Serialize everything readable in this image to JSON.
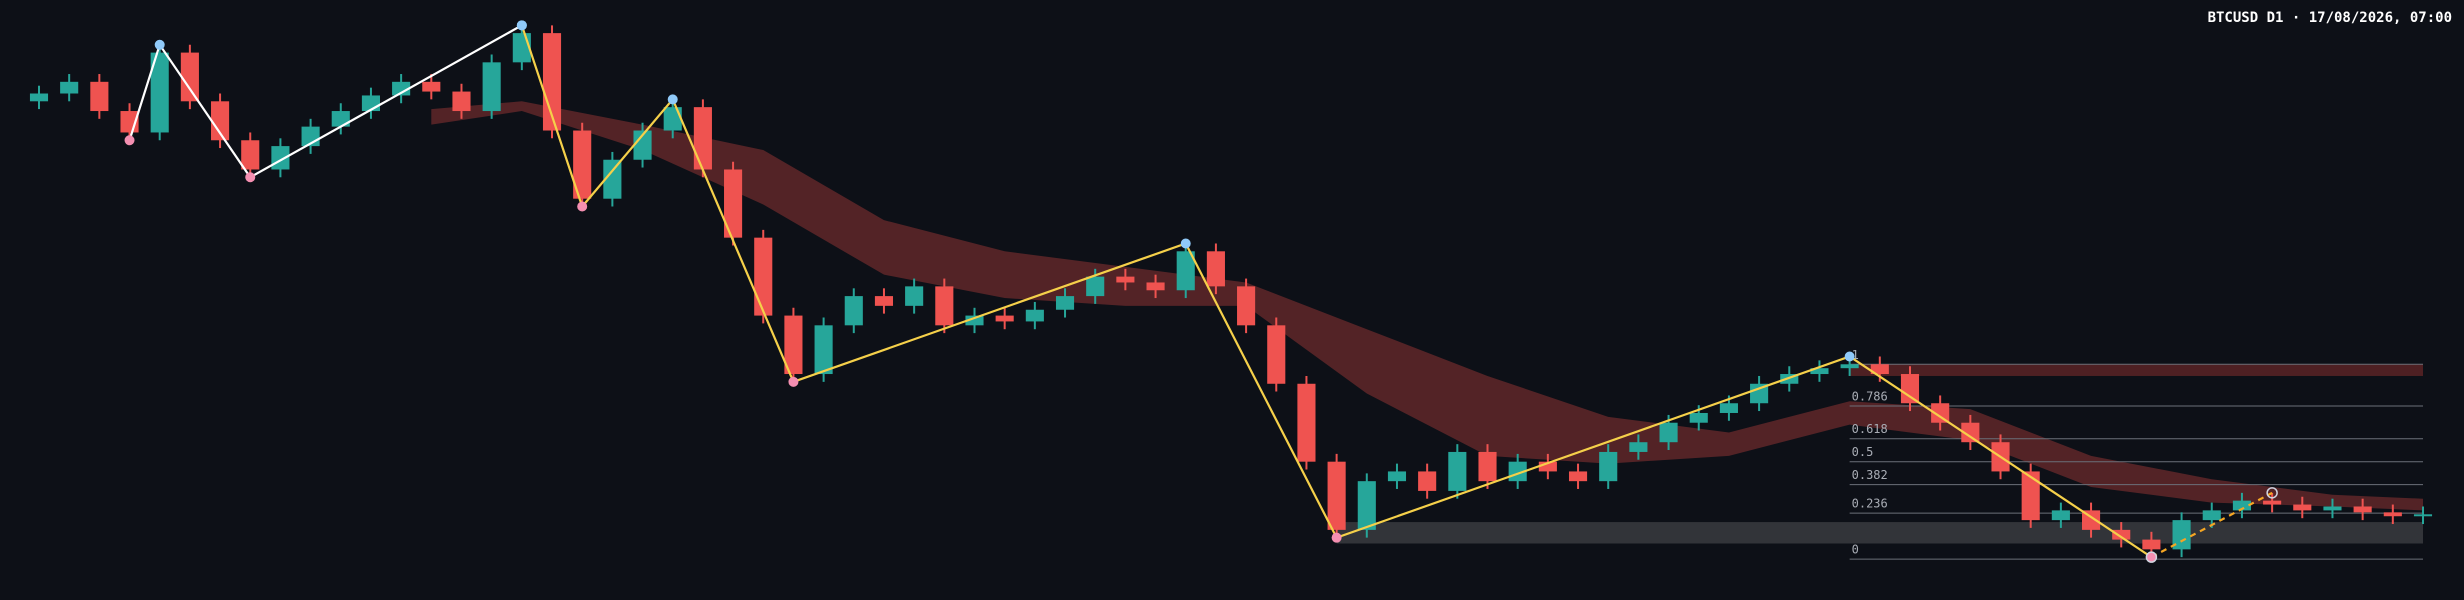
{
  "chart_data": {
    "type": "candlestick",
    "title": "BTCUSD D1 · 17/08/2026, 07:00",
    "up_color": "#26a69a",
    "down_color": "#ef5350",
    "xlim": [
      0,
      79
    ],
    "ylim": [
      -0.21,
      2.87
    ],
    "open": [
      2.35,
      2.39,
      2.45,
      2.3,
      2.19,
      2.6,
      2.35,
      2.15,
      2.0,
      2.12,
      2.22,
      2.3,
      2.38,
      2.45,
      2.4,
      2.3,
      2.55,
      2.7,
      2.2,
      1.85,
      2.05,
      2.2,
      2.32,
      2.0,
      1.65,
      1.25,
      0.95,
      1.2,
      1.35,
      1.3,
      1.4,
      1.2,
      1.25,
      1.22,
      1.28,
      1.35,
      1.45,
      1.42,
      1.38,
      1.58,
      1.4,
      1.2,
      0.9,
      0.5,
      0.15,
      0.4,
      0.45,
      0.35,
      0.55,
      0.4,
      0.5,
      0.45,
      0.4,
      0.55,
      0.6,
      0.7,
      0.75,
      0.8,
      0.9,
      0.95,
      0.98,
      1.0,
      0.95,
      0.8,
      0.7,
      0.6,
      0.45,
      0.2,
      0.25,
      0.15,
      0.1,
      0.05,
      0.2,
      0.25,
      0.3,
      0.28,
      0.25,
      0.27,
      0.24,
      0.22
    ],
    "high": [
      2.43,
      2.49,
      2.49,
      2.34,
      2.64,
      2.64,
      2.39,
      2.19,
      2.16,
      2.26,
      2.34,
      2.42,
      2.49,
      2.49,
      2.44,
      2.59,
      2.74,
      2.74,
      2.24,
      2.09,
      2.24,
      2.36,
      2.36,
      2.04,
      1.69,
      1.29,
      1.24,
      1.39,
      1.39,
      1.44,
      1.44,
      1.29,
      1.29,
      1.32,
      1.39,
      1.49,
      1.49,
      1.46,
      1.62,
      1.62,
      1.44,
      1.24,
      0.94,
      0.54,
      0.44,
      0.49,
      0.49,
      0.59,
      0.59,
      0.54,
      0.54,
      0.49,
      0.59,
      0.64,
      0.74,
      0.79,
      0.84,
      0.94,
      0.99,
      1.02,
      1.04,
      1.04,
      0.99,
      0.84,
      0.74,
      0.64,
      0.49,
      0.29,
      0.29,
      0.19,
      0.14,
      0.24,
      0.29,
      0.34,
      0.34,
      0.32,
      0.31,
      0.31,
      0.28,
      0.27
    ],
    "low": [
      2.31,
      2.35,
      2.26,
      2.15,
      2.15,
      2.31,
      2.11,
      1.96,
      1.96,
      2.08,
      2.18,
      2.26,
      2.34,
      2.36,
      2.26,
      2.26,
      2.51,
      2.16,
      1.81,
      1.81,
      2.01,
      2.16,
      1.96,
      1.61,
      1.21,
      0.91,
      0.91,
      1.16,
      1.26,
      1.26,
      1.16,
      1.16,
      1.18,
      1.18,
      1.24,
      1.31,
      1.38,
      1.34,
      1.34,
      1.36,
      1.16,
      0.86,
      0.46,
      0.11,
      0.11,
      0.36,
      0.31,
      0.31,
      0.36,
      0.36,
      0.41,
      0.36,
      0.36,
      0.51,
      0.56,
      0.66,
      0.71,
      0.76,
      0.86,
      0.91,
      0.94,
      0.91,
      0.76,
      0.66,
      0.56,
      0.41,
      0.16,
      0.16,
      0.11,
      0.06,
      0.01,
      0.01,
      0.16,
      0.21,
      0.24,
      0.21,
      0.21,
      0.2,
      0.18,
      0.18
    ],
    "close": [
      2.39,
      2.45,
      2.3,
      2.19,
      2.6,
      2.35,
      2.15,
      2.0,
      2.12,
      2.22,
      2.3,
      2.38,
      2.45,
      2.4,
      2.3,
      2.55,
      2.7,
      2.2,
      1.85,
      2.05,
      2.2,
      2.32,
      2.0,
      1.65,
      1.25,
      0.95,
      1.2,
      1.35,
      1.3,
      1.4,
      1.2,
      1.25,
      1.22,
      1.28,
      1.35,
      1.45,
      1.42,
      1.38,
      1.58,
      1.4,
      1.2,
      0.9,
      0.5,
      0.15,
      0.4,
      0.45,
      0.35,
      0.55,
      0.4,
      0.5,
      0.45,
      0.4,
      0.55,
      0.6,
      0.7,
      0.75,
      0.8,
      0.9,
      0.95,
      0.98,
      1.0,
      0.95,
      0.8,
      0.7,
      0.6,
      0.45,
      0.2,
      0.25,
      0.15,
      0.1,
      0.05,
      0.2,
      0.25,
      0.3,
      0.28,
      0.25,
      0.27,
      0.24,
      0.22,
      0.23
    ],
    "ribbon": {
      "color": "#6b2a2c",
      "x": [
        13,
        16,
        20,
        24,
        28,
        32,
        36,
        40,
        44,
        48,
        52,
        56,
        60,
        64,
        68,
        72,
        76,
        79
      ],
      "upper": [
        2.31,
        2.35,
        2.23,
        2.1,
        1.74,
        1.58,
        1.5,
        1.42,
        1.18,
        0.94,
        0.73,
        0.65,
        0.81,
        0.77,
        0.53,
        0.41,
        0.33,
        0.31
      ],
      "lower": [
        2.23,
        2.3,
        2.1,
        1.82,
        1.46,
        1.34,
        1.3,
        1.3,
        0.85,
        0.53,
        0.49,
        0.53,
        0.69,
        0.61,
        0.37,
        0.29,
        0.27,
        0.25
      ]
    },
    "zones": [
      {
        "color": "#3a3b3f",
        "x": [
          43,
          79
        ],
        "values": [
          0.19,
          0.08
        ]
      },
      {
        "color": "#5a2326",
        "x": [
          60,
          79
        ],
        "values": [
          1.0,
          0.94
        ]
      }
    ],
    "zigzag": [
      {
        "color": "#ffffff",
        "dashed": false,
        "x": [
          3,
          4,
          7,
          16
        ],
        "values": [
          2.15,
          2.64,
          1.96,
          2.74
        ]
      },
      {
        "color": "#f5d04a",
        "dashed": false,
        "x": [
          16,
          18,
          21,
          25,
          38,
          43,
          60,
          70
        ],
        "values": [
          2.74,
          1.81,
          2.36,
          0.91,
          1.62,
          0.11,
          1.04,
          0.01
        ]
      },
      {
        "color": "#f5a623",
        "dashed": true,
        "x": [
          70,
          74
        ],
        "values": [
          0.01,
          0.34
        ]
      }
    ],
    "fib": {
      "x": [
        60,
        79
      ],
      "levels": [
        1,
        0.786,
        0.618,
        0.5,
        0.382,
        0.236,
        0
      ]
    }
  }
}
